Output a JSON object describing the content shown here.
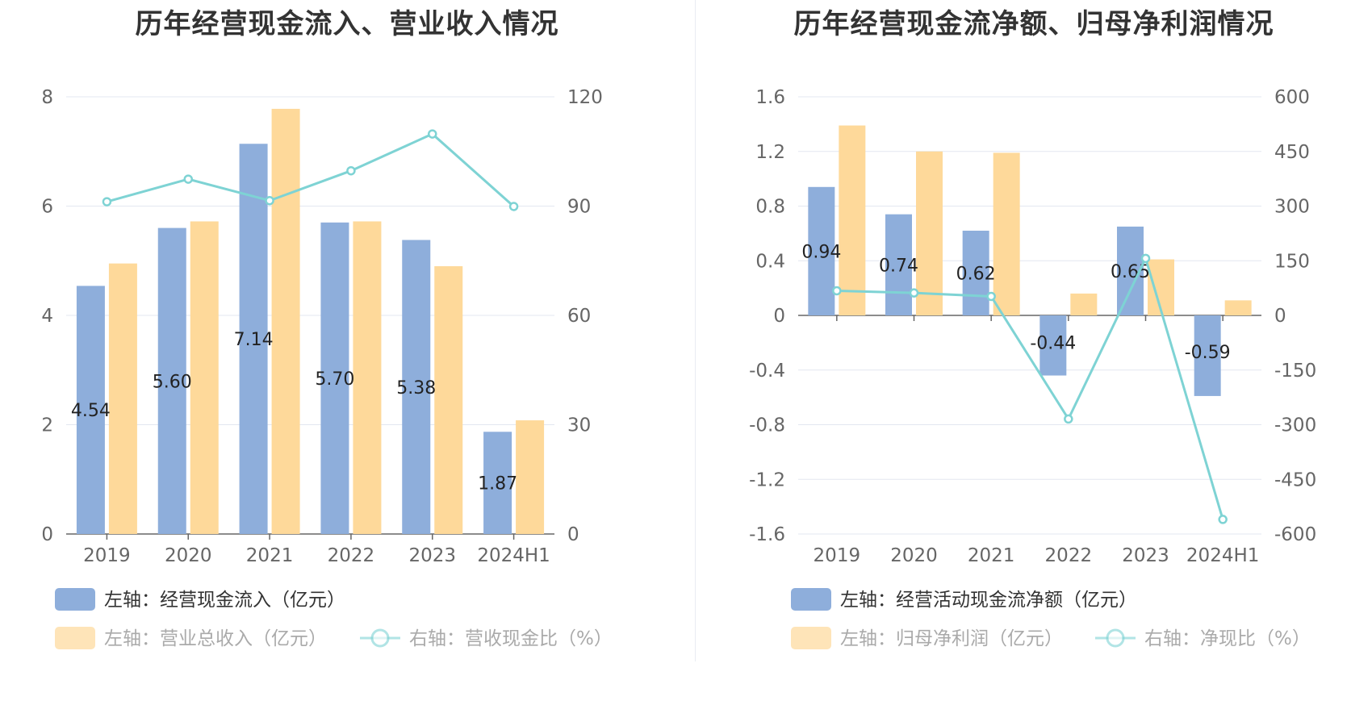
{
  "colors": {
    "bar_primary": "#8eaedb",
    "bar_secondary": "#fed99a",
    "line": "#7ed3d4",
    "grid": "#e3e7f0",
    "axis": "#666666"
  },
  "chart_data": [
    {
      "type": "bar+line",
      "title": "历年经营现金流入、营业收入情况",
      "categories": [
        "2019",
        "2020",
        "2021",
        "2022",
        "2023",
        "2024H1"
      ],
      "series": [
        {
          "name": "左轴：经营现金流入（亿元）",
          "axis": "left",
          "kind": "bar",
          "values": [
            4.54,
            5.6,
            7.14,
            5.7,
            5.38,
            1.87
          ],
          "labels": [
            "4.54",
            "5.60",
            "7.14",
            "5.70",
            "5.38",
            "1.87"
          ]
        },
        {
          "name": "左轴：营业总收入（亿元）",
          "axis": "left",
          "kind": "bar",
          "values": [
            4.95,
            5.72,
            7.78,
            5.72,
            4.9,
            2.08
          ]
        },
        {
          "name": "右轴：营收现金比（%）",
          "axis": "right",
          "kind": "line",
          "values": [
            91.2,
            97.4,
            91.5,
            99.7,
            109.8,
            89.9
          ]
        }
      ],
      "y_left": {
        "min": 0,
        "max": 8,
        "ticks": [
          "0",
          "2",
          "4",
          "6",
          "8"
        ]
      },
      "y_right": {
        "min": 0,
        "max": 120,
        "ticks": [
          "0",
          "30",
          "60",
          "90",
          "120"
        ]
      },
      "grid": true,
      "legend": "bottom"
    },
    {
      "type": "bar+line",
      "title": "历年经营现金流净额、归母净利润情况",
      "categories": [
        "2019",
        "2020",
        "2021",
        "2022",
        "2023",
        "2024H1"
      ],
      "series": [
        {
          "name": "左轴：经营活动现金流净额（亿元）",
          "axis": "left",
          "kind": "bar",
          "values": [
            0.94,
            0.74,
            0.62,
            -0.44,
            0.65,
            -0.59
          ],
          "labels": [
            "0.94",
            "0.74",
            "0.62",
            "-0.44",
            "0.65",
            "-0.59"
          ]
        },
        {
          "name": "左轴：归母净利润（亿元）",
          "axis": "left",
          "kind": "bar",
          "values": [
            1.39,
            1.2,
            1.19,
            0.16,
            0.41,
            0.11
          ]
        },
        {
          "name": "右轴：净现比（%）",
          "axis": "right",
          "kind": "line",
          "values": [
            67.6,
            61.7,
            52.1,
            -284.3,
            156.5,
            -560.0
          ]
        }
      ],
      "y_left": {
        "min": -1.6,
        "max": 1.6,
        "ticks": [
          "-1.6",
          "-1.2",
          "-0.8",
          "-0.4",
          "0",
          "0.4",
          "0.8",
          "1.2",
          "1.6"
        ]
      },
      "y_right": {
        "min": -600,
        "max": 600,
        "ticks": [
          "-600",
          "-450",
          "-300",
          "-150",
          "0",
          "150",
          "300",
          "450",
          "600"
        ]
      },
      "grid": true,
      "legend": "bottom"
    }
  ]
}
